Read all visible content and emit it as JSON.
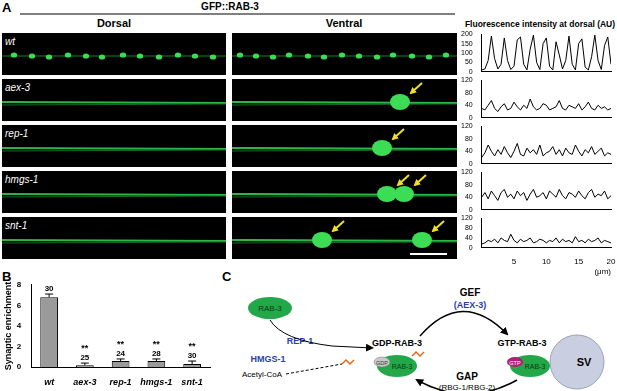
{
  "panel_labels": [
    "A",
    "B",
    "C"
  ],
  "images": {
    "title": "GFP::RAB-3",
    "columns": [
      "Dorsal",
      "Ventral"
    ],
    "rows": [
      "wt",
      "aex-3",
      "rep-1",
      "hmgs-1",
      "snt-1"
    ]
  },
  "profiles": {
    "title": "Fluorescence intensity at dorsal (AU)",
    "xlabel": "(μm)",
    "x": [
      0,
      0.5,
      1,
      1.5,
      2,
      2.5,
      3,
      3.5,
      4,
      4.5,
      5,
      5.5,
      6,
      6.5,
      7,
      7.5,
      8,
      8.5,
      9,
      9.5,
      10,
      10.5,
      11,
      11.5,
      12,
      12.5,
      13,
      13.5,
      14,
      14.5,
      15,
      15.5,
      16,
      16.5,
      17,
      17.5,
      18,
      18.5,
      19,
      19.5,
      20
    ],
    "xlim": [
      0,
      20
    ],
    "xticks": [
      5,
      10,
      15,
      20
    ],
    "charts": [
      {
        "type": "line",
        "color": "#000000",
        "tick_labels": "y",
        "ylim": [
          0,
          200
        ],
        "yticks": [
          0,
          50,
          100,
          150,
          200
        ],
        "values": [
          10,
          15,
          60,
          190,
          70,
          15,
          40,
          180,
          60,
          12,
          30,
          170,
          185,
          40,
          10,
          120,
          195,
          50,
          12,
          150,
          180,
          30,
          10,
          160,
          90,
          15,
          60,
          190,
          40,
          10,
          150,
          175,
          25,
          10,
          80,
          195,
          60,
          12,
          140,
          185,
          40
        ]
      },
      {
        "type": "line",
        "color": "#000000",
        "tick_labels": "y",
        "ylim": [
          0,
          120
        ],
        "yticks": [
          0,
          40,
          80,
          120
        ],
        "values": [
          30,
          25,
          40,
          55,
          30,
          20,
          35,
          45,
          25,
          30,
          50,
          35,
          25,
          40,
          30,
          60,
          35,
          25,
          30,
          45,
          40,
          25,
          30,
          35,
          55,
          30,
          25,
          40,
          35,
          30,
          45,
          25,
          35,
          50,
          30,
          25,
          40,
          30,
          35,
          25,
          30
        ]
      },
      {
        "type": "line",
        "color": "#000000",
        "tick_labels": "y",
        "ylim": [
          0,
          120
        ],
        "yticks": [
          0,
          40,
          80,
          120
        ],
        "values": [
          20,
          35,
          60,
          40,
          25,
          45,
          30,
          55,
          35,
          20,
          40,
          65,
          30,
          25,
          50,
          35,
          45,
          30,
          60,
          25,
          35,
          40,
          55,
          30,
          45,
          25,
          50,
          35,
          30,
          60,
          40,
          25,
          45,
          35,
          55,
          30,
          40,
          50,
          25,
          35,
          30
        ]
      },
      {
        "type": "line",
        "color": "#000000",
        "tick_labels": "y",
        "ylim": [
          0,
          120
        ],
        "yticks": [
          0,
          40,
          80,
          120
        ],
        "values": [
          40,
          55,
          35,
          60,
          45,
          30,
          55,
          65,
          40,
          50,
          35,
          60,
          45,
          55,
          30,
          50,
          65,
          40,
          45,
          55,
          35,
          60,
          50,
          40,
          65,
          45,
          35,
          55,
          50,
          40,
          60,
          45,
          35,
          55,
          65,
          40,
          50,
          45,
          60,
          35,
          45
        ]
      },
      {
        "type": "line",
        "color": "#000000",
        "ylim": [
          0,
          120
        ],
        "yticks": [
          0,
          40,
          80,
          120
        ],
        "values": [
          15,
          20,
          30,
          25,
          35,
          20,
          40,
          30,
          25,
          55,
          30,
          20,
          35,
          25,
          30,
          40,
          20,
          25,
          35,
          30,
          20,
          30,
          25,
          40,
          20,
          35,
          25,
          30,
          20,
          45,
          25,
          30,
          20,
          35,
          25,
          30,
          40,
          20,
          30,
          25,
          20
        ]
      }
    ]
  },
  "chart_data": {
    "type": "bar",
    "y_label": "Synaptic enrichment",
    "categories": [
      "wt",
      "aex-3",
      "rep-1",
      "hmgs-1",
      "snt-1"
    ],
    "values": [
      6.8,
      0.2,
      0.6,
      0.6,
      0.3
    ],
    "errors": [
      0.3,
      0.2,
      0.2,
      0.2,
      0.3
    ],
    "n": [
      30,
      25,
      24,
      28,
      30
    ],
    "significance": [
      null,
      "**",
      "**",
      "**",
      "**"
    ],
    "color": "#9a9a9a",
    "ylim": [
      0,
      8
    ],
    "yticks": [
      0,
      2,
      4,
      6,
      8
    ],
    "grid": false
  },
  "diagram": {
    "nodes": {
      "free_rab3": "RAB-3",
      "rep1": "REP-1",
      "hmgs1": "HMGS-1",
      "acetyl_coa": "Acetyl-CoA",
      "gdp_rab3": "GDP-RAB-3",
      "gdp_tag": "GDP",
      "gdp_body": "RAB-3",
      "gtp_rab3": "GTP-RAB-3",
      "gtp_tag": "GTP",
      "gtp_body": "RAB-3",
      "sv": "SV",
      "gef": "GEF",
      "gef_protein": "(AEX-3)",
      "gap": "GAP",
      "gap_protein": "(RBG-1/RBG-2)"
    }
  }
}
